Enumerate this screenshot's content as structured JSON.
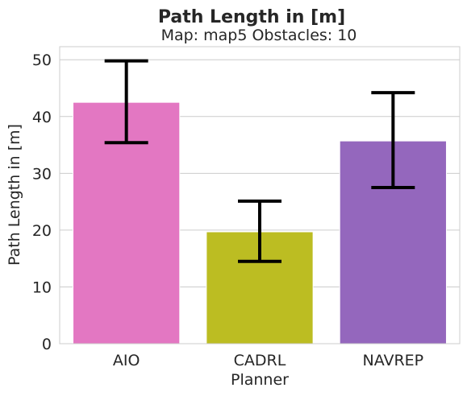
{
  "chart_data": {
    "type": "bar",
    "title": "Path Length in [m]",
    "subtitle": "Map: map5 Obstacles: 10",
    "xlabel": "Planner",
    "ylabel": "Path Length in [m]",
    "categories": [
      "AIO",
      "CADRL",
      "NAVREP"
    ],
    "values": [
      42.5,
      19.7,
      35.7
    ],
    "error_low": [
      35.4,
      14.5,
      27.5
    ],
    "error_high": [
      49.8,
      25.1,
      44.2
    ],
    "colors": [
      "#e377c2",
      "#bcbd22",
      "#9467bd"
    ],
    "ylim": [
      0,
      52.3
    ],
    "yticks": [
      0,
      10,
      20,
      30,
      40,
      50
    ],
    "grid": true,
    "legend": "none"
  }
}
